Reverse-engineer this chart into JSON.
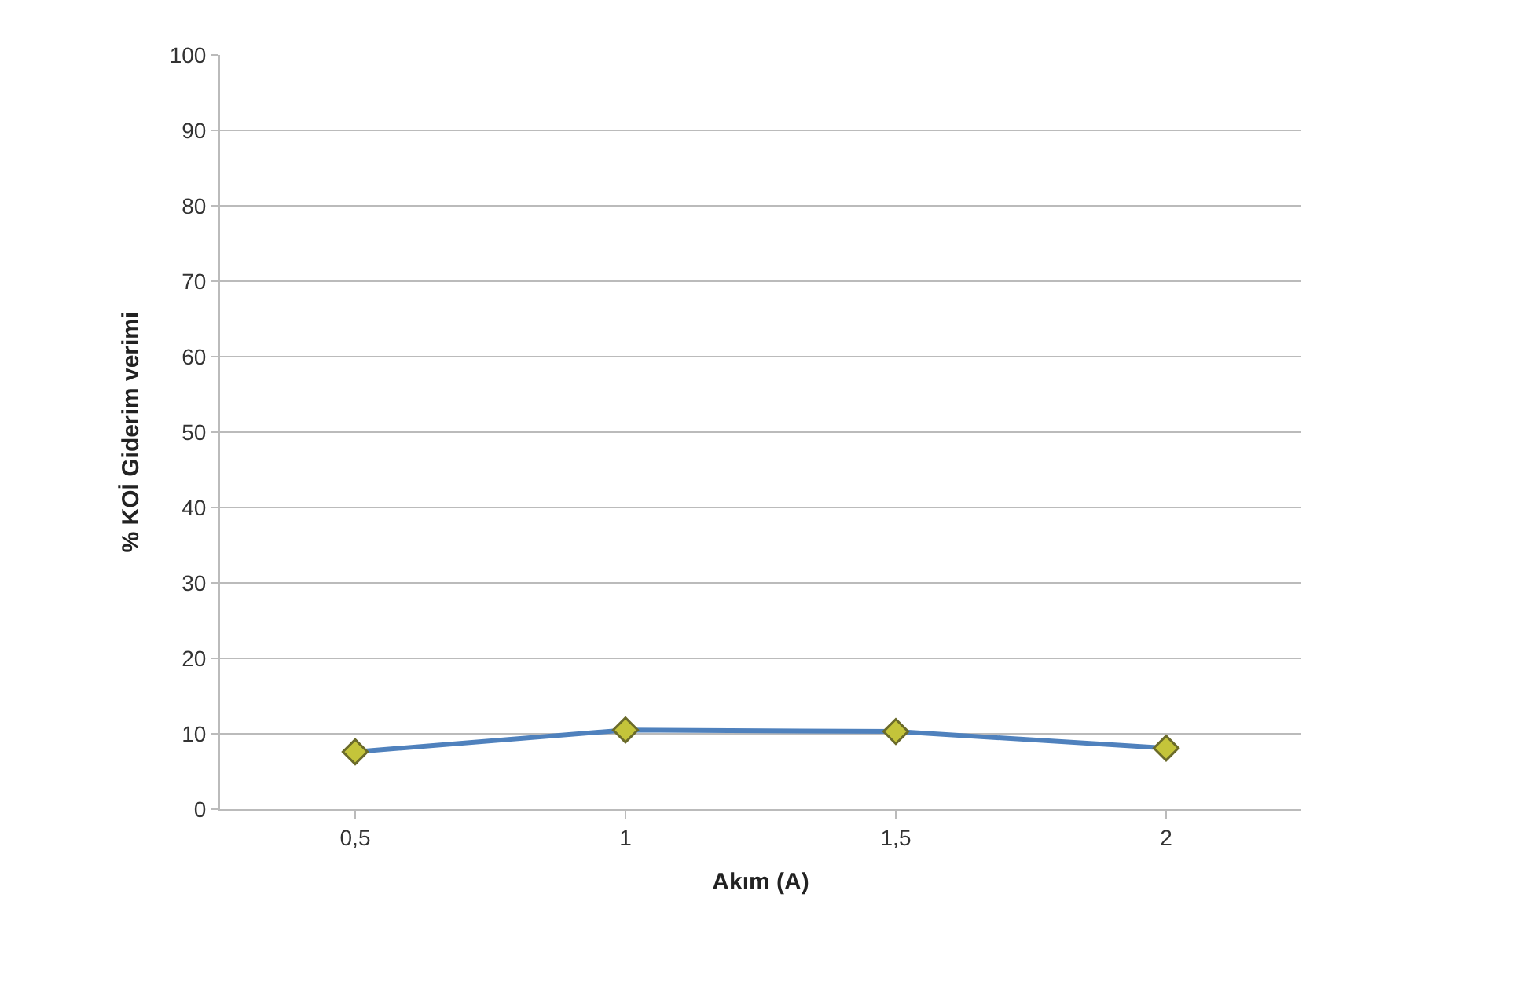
{
  "chart_data": {
    "type": "line",
    "xlabel": "Akım (A)",
    "ylabel": "% KOİ Giderim verimi",
    "categories": [
      "0,5",
      "1",
      "1,5",
      "2"
    ],
    "series": [
      {
        "color": "#4f81bd",
        "values": [
          7.6,
          10.5,
          10.3,
          8.1
        ]
      }
    ],
    "ylim": [
      0,
      100
    ],
    "yticks": [
      0,
      10,
      20,
      30,
      40,
      50,
      60,
      70,
      80,
      90,
      100
    ],
    "grid": "y",
    "marker": "diamond",
    "legend": false
  }
}
